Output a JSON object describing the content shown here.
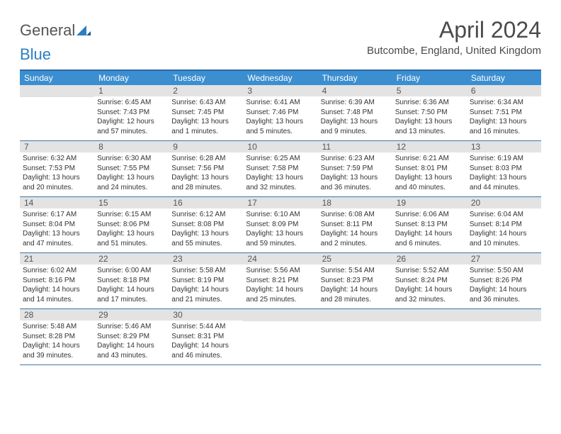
{
  "logo": {
    "text1": "General",
    "text2": "Blue"
  },
  "title": "April 2024",
  "location": "Butcombe, England, United Kingdom",
  "colors": {
    "header_bar": "#3b8fd0",
    "border": "#3b78a8",
    "daynum_bg": "#e3e3e3",
    "text": "#333333",
    "title": "#4a4a4a"
  },
  "weekdays": [
    "Sunday",
    "Monday",
    "Tuesday",
    "Wednesday",
    "Thursday",
    "Friday",
    "Saturday"
  ],
  "weeks": [
    [
      {
        "n": "",
        "sr": "",
        "ss": "",
        "dl": ""
      },
      {
        "n": "1",
        "sr": "Sunrise: 6:45 AM",
        "ss": "Sunset: 7:43 PM",
        "dl": "Daylight: 12 hours and 57 minutes."
      },
      {
        "n": "2",
        "sr": "Sunrise: 6:43 AM",
        "ss": "Sunset: 7:45 PM",
        "dl": "Daylight: 13 hours and 1 minutes."
      },
      {
        "n": "3",
        "sr": "Sunrise: 6:41 AM",
        "ss": "Sunset: 7:46 PM",
        "dl": "Daylight: 13 hours and 5 minutes."
      },
      {
        "n": "4",
        "sr": "Sunrise: 6:39 AM",
        "ss": "Sunset: 7:48 PM",
        "dl": "Daylight: 13 hours and 9 minutes."
      },
      {
        "n": "5",
        "sr": "Sunrise: 6:36 AM",
        "ss": "Sunset: 7:50 PM",
        "dl": "Daylight: 13 hours and 13 minutes."
      },
      {
        "n": "6",
        "sr": "Sunrise: 6:34 AM",
        "ss": "Sunset: 7:51 PM",
        "dl": "Daylight: 13 hours and 16 minutes."
      }
    ],
    [
      {
        "n": "7",
        "sr": "Sunrise: 6:32 AM",
        "ss": "Sunset: 7:53 PM",
        "dl": "Daylight: 13 hours and 20 minutes."
      },
      {
        "n": "8",
        "sr": "Sunrise: 6:30 AM",
        "ss": "Sunset: 7:55 PM",
        "dl": "Daylight: 13 hours and 24 minutes."
      },
      {
        "n": "9",
        "sr": "Sunrise: 6:28 AM",
        "ss": "Sunset: 7:56 PM",
        "dl": "Daylight: 13 hours and 28 minutes."
      },
      {
        "n": "10",
        "sr": "Sunrise: 6:25 AM",
        "ss": "Sunset: 7:58 PM",
        "dl": "Daylight: 13 hours and 32 minutes."
      },
      {
        "n": "11",
        "sr": "Sunrise: 6:23 AM",
        "ss": "Sunset: 7:59 PM",
        "dl": "Daylight: 13 hours and 36 minutes."
      },
      {
        "n": "12",
        "sr": "Sunrise: 6:21 AM",
        "ss": "Sunset: 8:01 PM",
        "dl": "Daylight: 13 hours and 40 minutes."
      },
      {
        "n": "13",
        "sr": "Sunrise: 6:19 AM",
        "ss": "Sunset: 8:03 PM",
        "dl": "Daylight: 13 hours and 44 minutes."
      }
    ],
    [
      {
        "n": "14",
        "sr": "Sunrise: 6:17 AM",
        "ss": "Sunset: 8:04 PM",
        "dl": "Daylight: 13 hours and 47 minutes."
      },
      {
        "n": "15",
        "sr": "Sunrise: 6:15 AM",
        "ss": "Sunset: 8:06 PM",
        "dl": "Daylight: 13 hours and 51 minutes."
      },
      {
        "n": "16",
        "sr": "Sunrise: 6:12 AM",
        "ss": "Sunset: 8:08 PM",
        "dl": "Daylight: 13 hours and 55 minutes."
      },
      {
        "n": "17",
        "sr": "Sunrise: 6:10 AM",
        "ss": "Sunset: 8:09 PM",
        "dl": "Daylight: 13 hours and 59 minutes."
      },
      {
        "n": "18",
        "sr": "Sunrise: 6:08 AM",
        "ss": "Sunset: 8:11 PM",
        "dl": "Daylight: 14 hours and 2 minutes."
      },
      {
        "n": "19",
        "sr": "Sunrise: 6:06 AM",
        "ss": "Sunset: 8:13 PM",
        "dl": "Daylight: 14 hours and 6 minutes."
      },
      {
        "n": "20",
        "sr": "Sunrise: 6:04 AM",
        "ss": "Sunset: 8:14 PM",
        "dl": "Daylight: 14 hours and 10 minutes."
      }
    ],
    [
      {
        "n": "21",
        "sr": "Sunrise: 6:02 AM",
        "ss": "Sunset: 8:16 PM",
        "dl": "Daylight: 14 hours and 14 minutes."
      },
      {
        "n": "22",
        "sr": "Sunrise: 6:00 AM",
        "ss": "Sunset: 8:18 PM",
        "dl": "Daylight: 14 hours and 17 minutes."
      },
      {
        "n": "23",
        "sr": "Sunrise: 5:58 AM",
        "ss": "Sunset: 8:19 PM",
        "dl": "Daylight: 14 hours and 21 minutes."
      },
      {
        "n": "24",
        "sr": "Sunrise: 5:56 AM",
        "ss": "Sunset: 8:21 PM",
        "dl": "Daylight: 14 hours and 25 minutes."
      },
      {
        "n": "25",
        "sr": "Sunrise: 5:54 AM",
        "ss": "Sunset: 8:23 PM",
        "dl": "Daylight: 14 hours and 28 minutes."
      },
      {
        "n": "26",
        "sr": "Sunrise: 5:52 AM",
        "ss": "Sunset: 8:24 PM",
        "dl": "Daylight: 14 hours and 32 minutes."
      },
      {
        "n": "27",
        "sr": "Sunrise: 5:50 AM",
        "ss": "Sunset: 8:26 PM",
        "dl": "Daylight: 14 hours and 36 minutes."
      }
    ],
    [
      {
        "n": "28",
        "sr": "Sunrise: 5:48 AM",
        "ss": "Sunset: 8:28 PM",
        "dl": "Daylight: 14 hours and 39 minutes."
      },
      {
        "n": "29",
        "sr": "Sunrise: 5:46 AM",
        "ss": "Sunset: 8:29 PM",
        "dl": "Daylight: 14 hours and 43 minutes."
      },
      {
        "n": "30",
        "sr": "Sunrise: 5:44 AM",
        "ss": "Sunset: 8:31 PM",
        "dl": "Daylight: 14 hours and 46 minutes."
      },
      {
        "n": "",
        "sr": "",
        "ss": "",
        "dl": ""
      },
      {
        "n": "",
        "sr": "",
        "ss": "",
        "dl": ""
      },
      {
        "n": "",
        "sr": "",
        "ss": "",
        "dl": ""
      },
      {
        "n": "",
        "sr": "",
        "ss": "",
        "dl": ""
      }
    ]
  ]
}
